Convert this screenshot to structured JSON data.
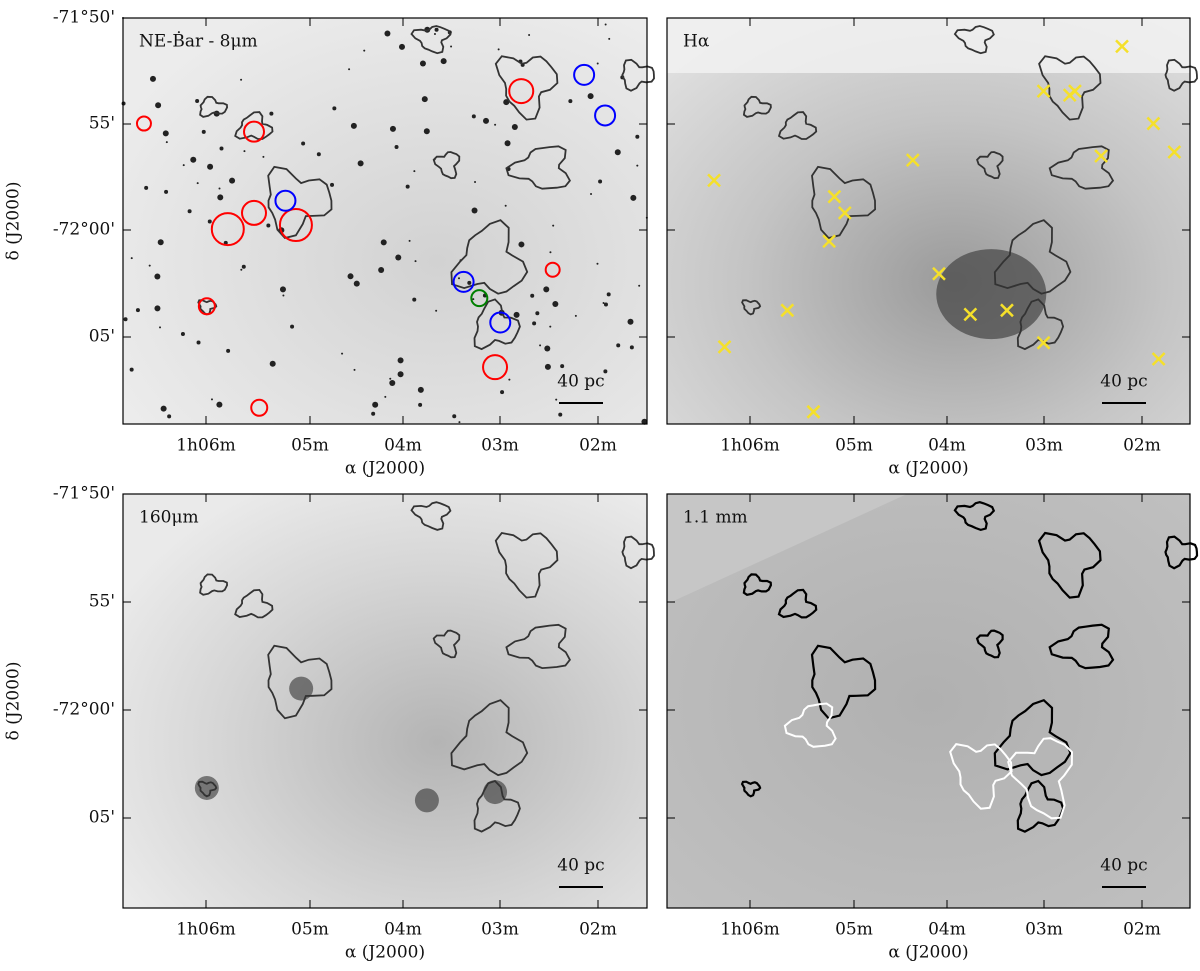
{
  "panels": [
    {
      "label": "NE-Bar - 8μm",
      "scale_bar": "40 pc",
      "x_label": "α (J2000)",
      "y_label": "δ (J2000)",
      "x_tick_labels": [
        "1h06m",
        "05m",
        "04m",
        "03m",
        "02m"
      ],
      "y_tick_labels": [
        "-71°50'",
        "55'",
        "-72°00'",
        "05'"
      ]
    },
    {
      "label": "Hα",
      "scale_bar": "40 pc",
      "x_label": "α (J2000)",
      "x_tick_labels": [
        "1h06m",
        "05m",
        "04m",
        "03m",
        "02m"
      ]
    },
    {
      "label": "160μm",
      "scale_bar": "40 pc",
      "x_label": "α (J2000)",
      "y_label": "δ (J2000)",
      "x_tick_labels": [
        "1h06m",
        "05m",
        "04m",
        "03m",
        "02m"
      ],
      "y_tick_labels": [
        "-71°50'",
        "55'",
        "-72°00'",
        "05'"
      ]
    },
    {
      "label": "1.1 mm",
      "scale_bar": "40 pc",
      "x_label": "α (J2000)",
      "x_tick_labels": [
        "1h06m",
        "05m",
        "04m",
        "03m",
        "02m"
      ]
    }
  ]
}
